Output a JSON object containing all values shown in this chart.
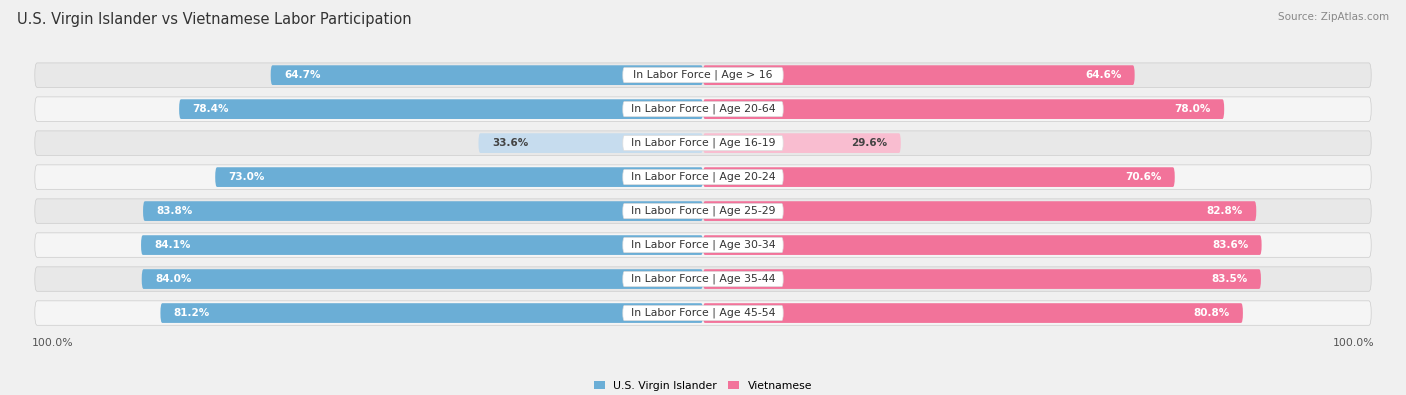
{
  "title": "U.S. Virgin Islander vs Vietnamese Labor Participation",
  "source": "Source: ZipAtlas.com",
  "categories": [
    "In Labor Force | Age > 16",
    "In Labor Force | Age 20-64",
    "In Labor Force | Age 16-19",
    "In Labor Force | Age 20-24",
    "In Labor Force | Age 25-29",
    "In Labor Force | Age 30-34",
    "In Labor Force | Age 35-44",
    "In Labor Force | Age 45-54"
  ],
  "left_values": [
    64.7,
    78.4,
    33.6,
    73.0,
    83.8,
    84.1,
    84.0,
    81.2
  ],
  "right_values": [
    64.6,
    78.0,
    29.6,
    70.6,
    82.8,
    83.6,
    83.5,
    80.8
  ],
  "left_color": "#6BAED6",
  "right_color": "#F2739A",
  "left_color_light": "#C6DCEE",
  "right_color_light": "#F9BDD0",
  "left_label": "U.S. Virgin Islander",
  "right_label": "Vietnamese",
  "max_value": 100.0,
  "bg_color": "#f0f0f0",
  "row_bg_color_even": "#e8e8e8",
  "row_bg_color_odd": "#f5f5f5",
  "title_fontsize": 10.5,
  "source_fontsize": 7.5,
  "label_fontsize": 7.8,
  "value_fontsize": 7.5,
  "axis_label": "100.0%"
}
